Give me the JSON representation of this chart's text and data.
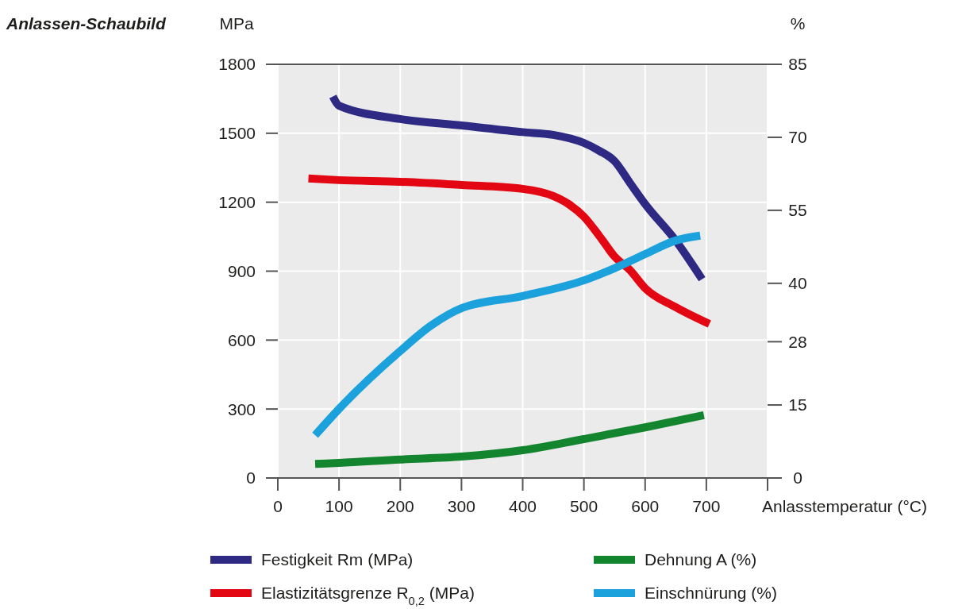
{
  "chart_data": {
    "type": "line",
    "title": "Anlassen-Schaubild",
    "ylabel": "MPa",
    "y2label": "%",
    "xlabel": "Anlasstemperatur (°C)",
    "xlim": [
      0,
      800
    ],
    "xticks": [
      0,
      100,
      200,
      300,
      400,
      500,
      600,
      700,
      {
        "value": 800,
        "label": null
      }
    ],
    "ylim": [
      0,
      1800
    ],
    "yticks": [
      0,
      300,
      600,
      900,
      1200,
      1500,
      1800
    ],
    "y2lim": [
      0,
      85
    ],
    "y2ticks": [
      0,
      15,
      28,
      40,
      55,
      70,
      85
    ],
    "grid": true,
    "legend": "bottom",
    "marker": "none",
    "line_style": "solid",
    "series": [
      {
        "name": "Festigkeit Rm (MPa)",
        "color": "#2e2a84",
        "x": [
          90,
          100,
          200,
          300,
          400,
          450,
          500,
          525,
          550,
          575,
          600,
          650,
          693
        ],
        "values": [
          1660,
          1620,
          1562,
          1534,
          1505,
          1493,
          1458,
          1424,
          1379,
          1285,
          1192,
          1033,
          865
        ]
      },
      {
        "name": "Elastizitätsgrenze R$_{0,2}$ (MPa)",
        "color": "#e30613",
        "x": [
          50,
          100,
          200,
          300,
          400,
          450,
          475,
          500,
          525,
          550,
          575,
          600,
          650,
          705
        ],
        "values": [
          1303,
          1296,
          1289,
          1275,
          1258,
          1227,
          1192,
          1137,
          1054,
          964,
          905,
          826,
          743,
          670
        ]
      },
      {
        "name": "Dehnung A (%)",
        "color": "#13852e",
        "axis": "y2",
        "x": [
          61,
          100,
          200,
          300,
          400,
          500,
          600,
          696
        ],
        "values": [
          2.9,
          3.1,
          3.8,
          4.4,
          5.7,
          8.0,
          10.4,
          12.9
        ]
      },
      {
        "name": "Einschnürung (%)",
        "color": "#1ba1dc",
        "axis": "y2",
        "x": [
          61,
          100,
          200,
          250,
          300,
          400,
          500,
          550,
          600,
          650,
          690
        ],
        "values": [
          8.8,
          14.2,
          26.1,
          31.3,
          34.9,
          37.4,
          40.6,
          43.1,
          46.0,
          48.8,
          49.8
        ]
      }
    ]
  }
}
